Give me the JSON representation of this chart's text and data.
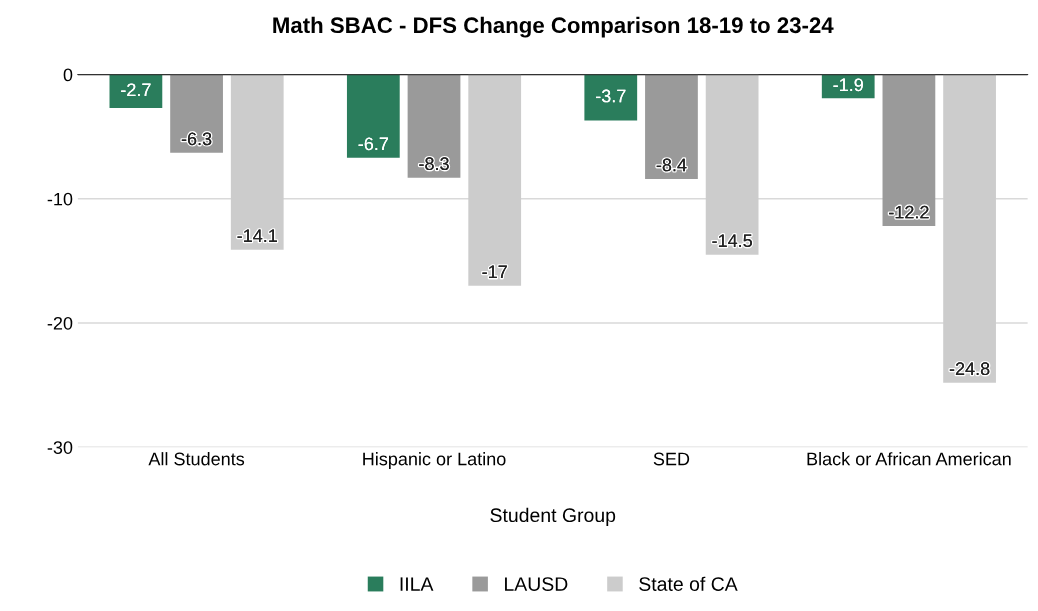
{
  "chart_data": {
    "type": "bar",
    "title": "Math SBAC - DFS Change Comparison 18-19 to 23-24",
    "xlabel": "Student Group",
    "categories": [
      "All Students",
      "Hispanic or Latino",
      "SED",
      "Black or African American"
    ],
    "series": [
      {
        "name": "IILA",
        "color": "#2a7d5c",
        "values": [
          -2.7,
          -6.7,
          -3.7,
          -1.9
        ]
      },
      {
        "name": "LAUSD",
        "color": "#9a9a9a",
        "values": [
          -6.3,
          -8.3,
          -8.4,
          -12.2
        ]
      },
      {
        "name": "State of CA",
        "color": "#cccccc",
        "values": [
          -14.1,
          -17,
          -14.5,
          -24.8
        ]
      }
    ],
    "ylim": [
      -30,
      0
    ],
    "yticks": [
      0,
      -10,
      -20,
      -30
    ],
    "grid": "y",
    "legend": "bottom",
    "data_labels": true
  }
}
